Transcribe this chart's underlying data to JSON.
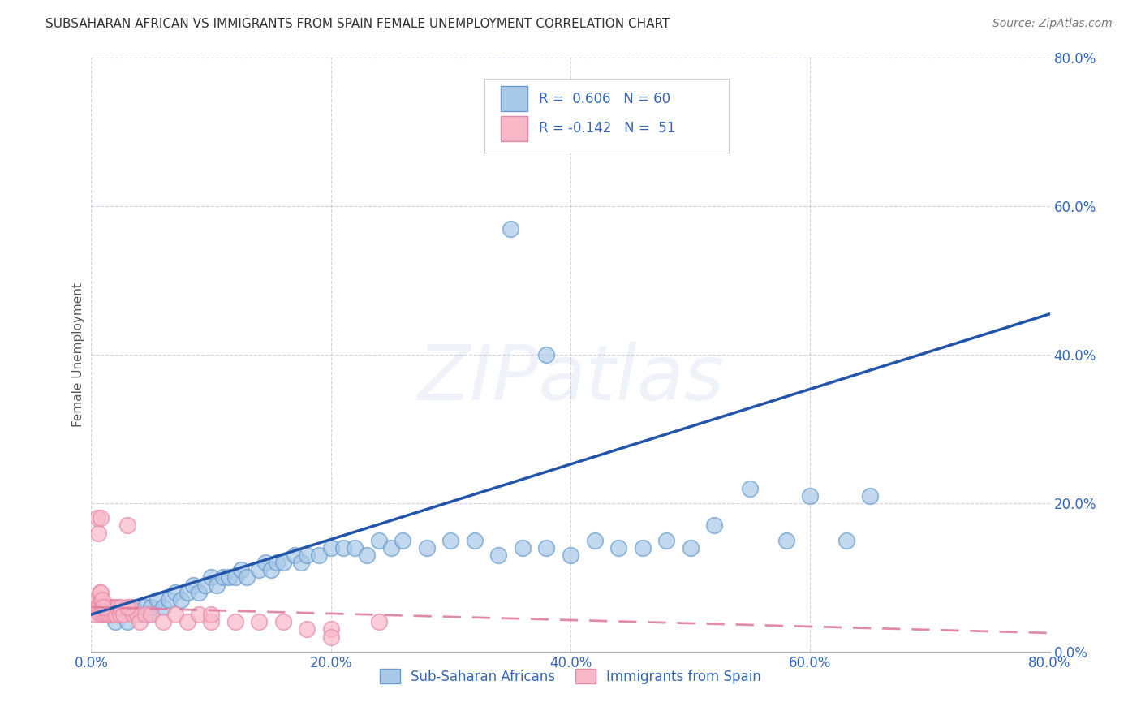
{
  "title": "SUBSAHARAN AFRICAN VS IMMIGRANTS FROM SPAIN FEMALE UNEMPLOYMENT CORRELATION CHART",
  "source": "Source: ZipAtlas.com",
  "ylabel": "Female Unemployment",
  "xlim": [
    0.0,
    0.8
  ],
  "ylim": [
    0.0,
    0.8
  ],
  "xticks": [
    0.0,
    0.2,
    0.4,
    0.6,
    0.8
  ],
  "yticks": [
    0.0,
    0.2,
    0.4,
    0.6,
    0.8
  ],
  "watermark": "ZIPatlas",
  "legend_entry1_label": "Sub-Saharan Africans",
  "legend_entry2_label": "Immigrants from Spain",
  "r1": 0.606,
  "n1": 60,
  "r2": -0.142,
  "n2": 51,
  "color_blue_fill": "#A8C8E8",
  "color_blue_edge": "#6699CC",
  "color_pink_fill": "#F8B8C8",
  "color_pink_edge": "#E888A8",
  "color_blue_line": "#2255AA",
  "color_pink_line": "#DD7799",
  "background": "#FFFFFF",
  "grid_color": "#CCCCDD",
  "blue_x": [
    0.02,
    0.025,
    0.03,
    0.035,
    0.04,
    0.045,
    0.048,
    0.05,
    0.055,
    0.06,
    0.065,
    0.07,
    0.075,
    0.08,
    0.085,
    0.09,
    0.095,
    0.1,
    0.105,
    0.11,
    0.115,
    0.12,
    0.125,
    0.13,
    0.14,
    0.145,
    0.15,
    0.155,
    0.16,
    0.17,
    0.175,
    0.18,
    0.19,
    0.2,
    0.21,
    0.22,
    0.23,
    0.24,
    0.25,
    0.26,
    0.28,
    0.3,
    0.32,
    0.34,
    0.36,
    0.38,
    0.4,
    0.42,
    0.44,
    0.46,
    0.48,
    0.5,
    0.52,
    0.55,
    0.58,
    0.6,
    0.63,
    0.65,
    0.35,
    0.38
  ],
  "blue_y": [
    0.04,
    0.05,
    0.04,
    0.06,
    0.05,
    0.06,
    0.05,
    0.06,
    0.07,
    0.06,
    0.07,
    0.08,
    0.07,
    0.08,
    0.09,
    0.08,
    0.09,
    0.1,
    0.09,
    0.1,
    0.1,
    0.1,
    0.11,
    0.1,
    0.11,
    0.12,
    0.11,
    0.12,
    0.12,
    0.13,
    0.12,
    0.13,
    0.13,
    0.14,
    0.14,
    0.14,
    0.13,
    0.15,
    0.14,
    0.15,
    0.14,
    0.15,
    0.15,
    0.13,
    0.14,
    0.14,
    0.13,
    0.15,
    0.14,
    0.14,
    0.15,
    0.14,
    0.17,
    0.22,
    0.15,
    0.21,
    0.15,
    0.21,
    0.57,
    0.4
  ],
  "pink_x": [
    0.003,
    0.004,
    0.005,
    0.006,
    0.007,
    0.008,
    0.009,
    0.01,
    0.011,
    0.012,
    0.013,
    0.014,
    0.015,
    0.016,
    0.017,
    0.018,
    0.019,
    0.02,
    0.021,
    0.022,
    0.024,
    0.025,
    0.027,
    0.03,
    0.032,
    0.035,
    0.038,
    0.04,
    0.045,
    0.05,
    0.06,
    0.07,
    0.08,
    0.09,
    0.1,
    0.12,
    0.14,
    0.16,
    0.18,
    0.2,
    0.24,
    0.005,
    0.006,
    0.007,
    0.008,
    0.008,
    0.009,
    0.01,
    0.03,
    0.1,
    0.2
  ],
  "pink_y": [
    0.05,
    0.06,
    0.07,
    0.06,
    0.05,
    0.07,
    0.05,
    0.06,
    0.05,
    0.06,
    0.05,
    0.06,
    0.05,
    0.06,
    0.05,
    0.06,
    0.05,
    0.06,
    0.05,
    0.06,
    0.05,
    0.06,
    0.05,
    0.17,
    0.06,
    0.05,
    0.05,
    0.04,
    0.05,
    0.05,
    0.04,
    0.05,
    0.04,
    0.05,
    0.04,
    0.04,
    0.04,
    0.04,
    0.03,
    0.03,
    0.04,
    0.18,
    0.16,
    0.08,
    0.08,
    0.18,
    0.07,
    0.06,
    0.06,
    0.05,
    0.02
  ],
  "blue_line_x0": 0.0,
  "blue_line_y0": 0.05,
  "blue_line_x1": 0.8,
  "blue_line_y1": 0.455,
  "pink_line_x0": 0.0,
  "pink_line_y0": 0.06,
  "pink_line_x1": 0.8,
  "pink_line_y1": 0.025
}
